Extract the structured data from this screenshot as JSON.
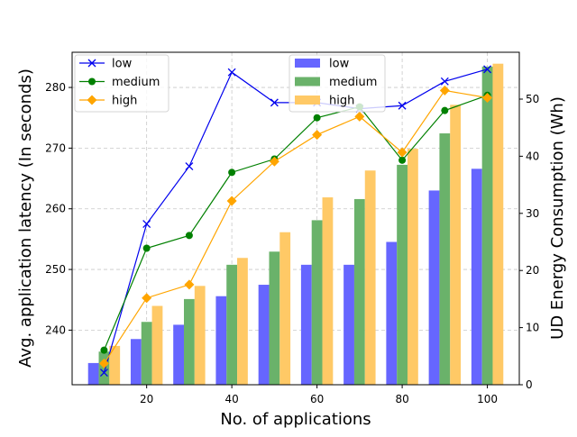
{
  "chart_data": {
    "type": "bar+line",
    "x": [
      10,
      20,
      30,
      40,
      50,
      60,
      70,
      80,
      90,
      100
    ],
    "xlabel": "No. of applications",
    "ylabel_left": "Avg. application latency (In seconds)",
    "ylabel_right": "UD Energy Consumption (Wh)",
    "x_ticks": [
      20,
      40,
      60,
      80,
      100
    ],
    "ylim_left": [
      231,
      285.8
    ],
    "yticks_left": [
      240,
      250,
      260,
      270,
      280
    ],
    "ylim_right": [
      0,
      58.2
    ],
    "yticks_right": [
      0,
      10,
      20,
      30,
      40,
      50
    ],
    "grid": true,
    "line_legend_placement": "upper-left",
    "bar_legend_placement": "upper-center",
    "line_series": [
      {
        "name": "low",
        "color": "#0000ee",
        "marker": "x",
        "values": [
          233.0,
          257.5,
          267.0,
          282.5,
          277.5,
          277.5,
          276.5,
          277.0,
          281.0,
          283.0
        ]
      },
      {
        "name": "medium",
        "color": "#008000",
        "marker": "o",
        "values": [
          236.7,
          253.5,
          255.6,
          266.0,
          268.2,
          275.0,
          276.8,
          268.0,
          276.2,
          278.7
        ]
      },
      {
        "name": "high",
        "color": "#ffa500",
        "marker": "D",
        "values": [
          234.5,
          245.3,
          247.5,
          261.3,
          267.8,
          272.2,
          275.2,
          269.3,
          279.5,
          278.3
        ]
      }
    ],
    "bar_series": [
      {
        "name": "low",
        "color": "#6666ff",
        "values": [
          3.8,
          8.0,
          10.5,
          15.5,
          17.5,
          21.0,
          21.0,
          25.0,
          34.0,
          37.8
        ]
      },
      {
        "name": "medium",
        "color": "#6ab26a",
        "values": [
          5.8,
          11.0,
          15.0,
          21.0,
          23.3,
          28.8,
          32.5,
          38.5,
          44.0,
          55.7
        ]
      },
      {
        "name": "high",
        "color": "#ffc966",
        "values": [
          6.8,
          13.8,
          17.3,
          22.2,
          26.7,
          32.8,
          37.5,
          41.3,
          49.0,
          56.2
        ]
      }
    ]
  }
}
